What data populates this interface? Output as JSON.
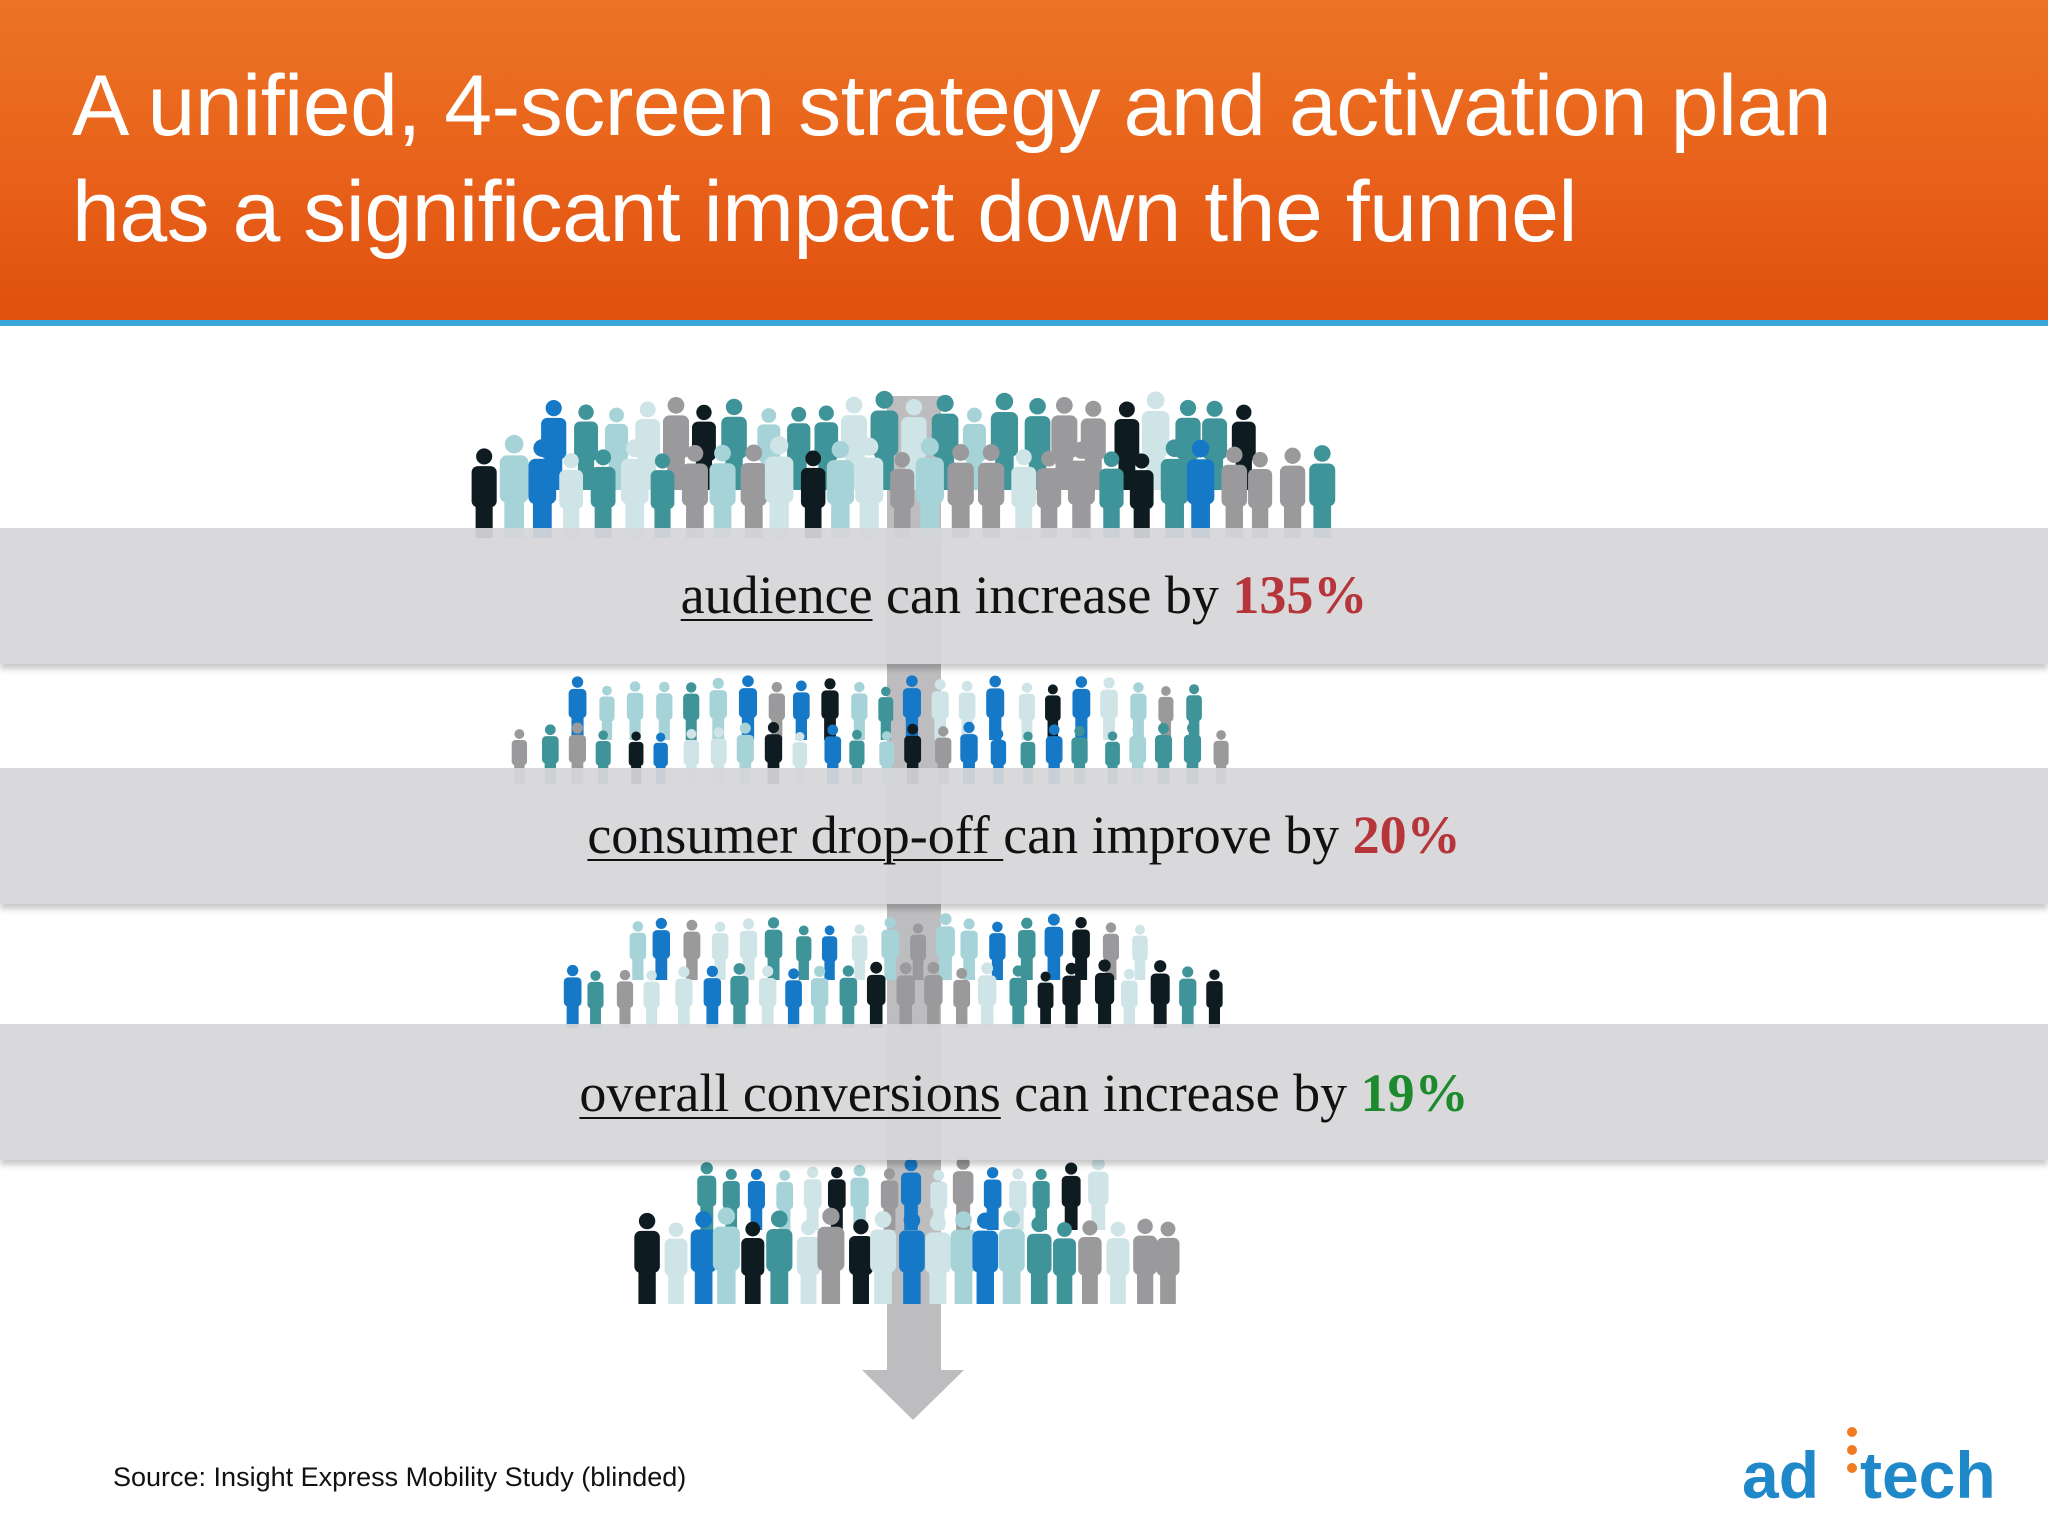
{
  "slide": {
    "title_line1": "A unified, 4-screen strategy and activation plan",
    "title_line2": "has a significant impact down the funnel"
  },
  "bands": [
    {
      "metric": "audience",
      "middle": " can increase by ",
      "value": "135%",
      "value_color": "#b5353a"
    },
    {
      "metric": "consumer drop-off ",
      "middle": "can improve by ",
      "value": "20%",
      "value_color": "#b5353a"
    },
    {
      "metric": "overall conversions",
      "middle": " can increase by ",
      "value": "19%",
      "value_color": "#1d8a2e"
    }
  ],
  "source": "Source: Insight Express Mobility Study (blinded)",
  "logo": {
    "part1": "ad",
    "part2": "tech",
    "color": "#1f88c8",
    "dot_color": "#ef7b22"
  },
  "colors": {
    "header": "#e8611a",
    "rule": "#3aa6db",
    "band": "#d6d6d8",
    "crowd": [
      "#9a9a9c",
      "#cfe4e6",
      "#3f9499",
      "#1679c8",
      "#0e1c22",
      "#a6d3d7"
    ]
  },
  "icons": [
    "people-crowd-icon",
    "down-arrow-icon"
  ]
}
